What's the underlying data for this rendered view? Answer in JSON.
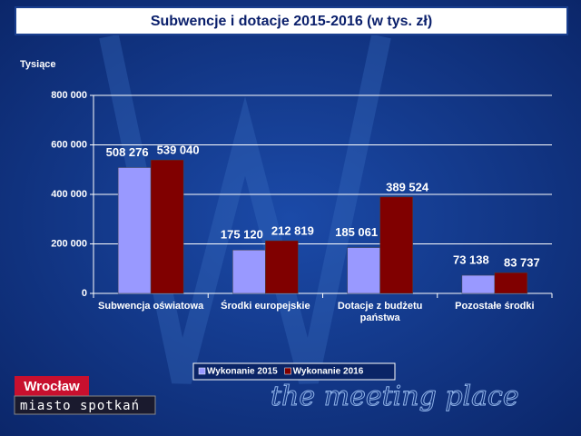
{
  "chart_data": {
    "type": "bar",
    "title": "Subwencje i dotacje 2015-2016 (w tys. zł)",
    "y_label": "Tysiące",
    "categories": [
      "Subwencja oświatowa",
      "Środki europejskie",
      "Dotacje z budżetu państwa",
      "Pozostałe środki"
    ],
    "series": [
      {
        "name": "Wykonanie 2015",
        "color": "#9999ff",
        "values": [
          508276,
          175120,
          185061,
          73138
        ],
        "value_labels": [
          "508 276",
          "175 120",
          "185 061",
          "73 138"
        ]
      },
      {
        "name": "Wykonanie 2016",
        "color": "#800000",
        "values": [
          539040,
          212819,
          389524,
          83737
        ],
        "value_labels": [
          "539 040",
          "212 819",
          "389 524",
          "83 737"
        ]
      }
    ],
    "ylim": [
      0,
      800000
    ],
    "yticks": [
      0,
      {
        "value": 200000,
        "label": "200 000"
      },
      {
        "value": 400000,
        "label": "400 000"
      },
      {
        "value": 600000,
        "label": "600 000"
      },
      {
        "value": 800000,
        "label": "800 000"
      }
    ],
    "grid": true,
    "legend": "bottom"
  },
  "branding": {
    "logo": "Wrocław",
    "tagline": "miasto spotkań",
    "slogan": "the meeting place"
  }
}
